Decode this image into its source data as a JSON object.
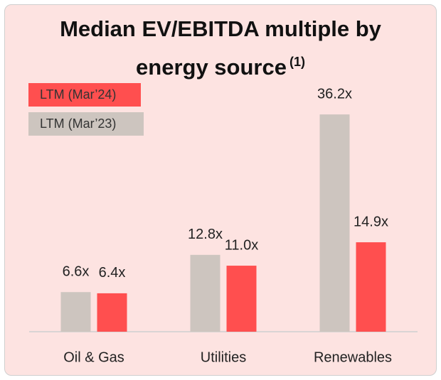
{
  "chart_data": {
    "type": "bar",
    "title": "Median EV/EBITDA multiple by energy source",
    "footnote_marker": "(1)",
    "categories": [
      "Oil & Gas",
      "Utilities",
      "Renewables"
    ],
    "series": [
      {
        "name": "LTM (Mar’23)",
        "color": "#cdc5bf",
        "values": [
          6.6,
          12.8,
          36.2
        ],
        "value_labels": [
          "6.6x",
          "12.8x",
          "36.2x"
        ]
      },
      {
        "name": "LTM (Mar’24)",
        "color": "#ff4f4f",
        "values": [
          6.4,
          11.0,
          14.9
        ],
        "value_labels": [
          "6.4x",
          "11.0x",
          "14.9x"
        ]
      }
    ],
    "ylim": [
      0,
      40
    ],
    "legend": "top-left"
  }
}
